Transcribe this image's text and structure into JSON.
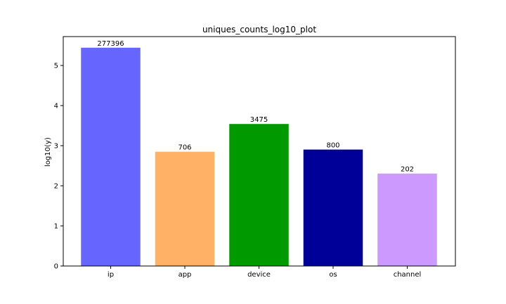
{
  "chart_data": {
    "type": "bar",
    "title": "uniques_counts_log10_plot",
    "xlabel": "",
    "ylabel": "log10(y)",
    "categories": [
      "ip",
      "app",
      "device",
      "os",
      "channel"
    ],
    "counts": [
      "277396",
      "706",
      "3475",
      "800",
      "202"
    ],
    "values": [
      5.443,
      2.849,
      3.541,
      2.903,
      2.305
    ],
    "colors": [
      "#6666ff",
      "#ffb266",
      "#009900",
      "#000099",
      "#cc99ff"
    ],
    "ylim": [
      0,
      5.72
    ],
    "yticks": [
      "0",
      "1",
      "2",
      "3",
      "4",
      "5"
    ],
    "grid": false,
    "legend": "none"
  }
}
